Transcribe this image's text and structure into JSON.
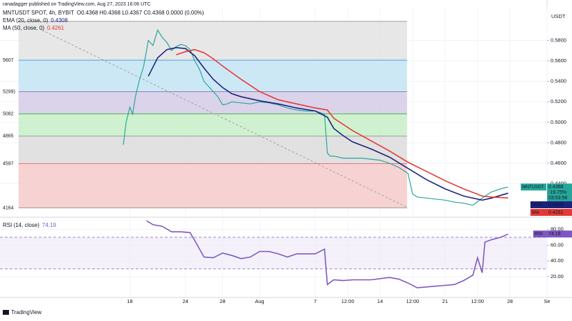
{
  "header": {
    "publisher": "ranadagger published on TradingView.com, Aug 27, 2023 16:06 UTC",
    "logo": "TradingView"
  },
  "chart_data": [
    {
      "type": "line",
      "axis_unit": "USDT",
      "ohlc": "O0.4368 H0.4368 L0.4367 C0.4368 0.0000 (0.00%)",
      "tag_symbol": "MNTUSDT",
      "change": "-19.75%",
      "countdown": "03:53:56",
      "grid": true,
      "xlim": [
        4,
        63
      ],
      "ylim": [
        0.41,
        0.61
      ],
      "yticks": [
        {
          "value": 0.58,
          "label": "0.5800"
        },
        {
          "value": 0.56,
          "label": "0.5600"
        },
        {
          "value": 0.54,
          "label": "0.5400"
        },
        {
          "value": 0.52,
          "label": "0.5200"
        },
        {
          "value": 0.5,
          "label": "0.5000"
        },
        {
          "value": 0.48,
          "label": "0.4800"
        },
        {
          "value": 0.46,
          "label": "0.4600"
        },
        {
          "value": 0.44,
          "label": "0.4400"
        }
      ],
      "fib_x": [
        6,
        47.9
      ],
      "fib_levels": [
        {
          "value": 0.5986,
          "color": "#9e9e9e",
          "fill": "#e3e3e3"
        },
        {
          "value": 0.5607,
          "label": "5607",
          "color": "#4aa3df",
          "fill": "#c4e4f3"
        },
        {
          "value": 0.5299,
          "label": "5299)",
          "color": "#8e7cc3",
          "fill": "#d3cbe6"
        },
        {
          "value": 0.5082,
          "label": "5082",
          "color": "#4caf50",
          "fill": "#c8efc8"
        },
        {
          "value": 0.4865,
          "label": "4865",
          "color": "#9e9e9e",
          "fill": "#dcdcdc"
        },
        {
          "value": 0.4597,
          "label": "4597",
          "color": "#e57373",
          "fill": "#f6caca"
        },
        {
          "value": 0.4164,
          "label": "4164",
          "color": "#9e9e9e"
        }
      ],
      "trendline": {
        "x": [
          8.5,
          47.9
        ],
        "values": [
          0.5901,
          0.417
        ],
        "color": "#9e9e9e"
      },
      "series": [
        {
          "name": "MNTUSDT SPOT, 4h, BYBIT",
          "color": "#26a69a",
          "x": [
            17.3,
            17.6,
            18,
            18.3,
            18.6,
            19,
            19.5,
            20,
            20.5,
            21,
            21.5,
            22,
            22.5,
            23,
            23.5,
            24,
            24.5,
            25,
            25.5,
            26,
            26.5,
            27,
            27.5,
            28,
            28.5,
            29,
            30,
            31,
            32,
            33,
            34,
            35,
            36,
            37,
            38,
            39,
            39.3,
            39.6,
            40,
            41,
            42,
            43,
            44,
            45,
            46,
            47,
            48,
            48.5,
            49,
            50,
            51,
            52,
            53,
            54,
            55,
            56,
            57,
            58,
            58.8
          ],
          "values": [
            0.478,
            0.5,
            0.515,
            0.508,
            0.525,
            0.54,
            0.555,
            0.58,
            0.575,
            0.59,
            0.583,
            0.578,
            0.57,
            0.574,
            0.576,
            0.575,
            0.571,
            0.56,
            0.552,
            0.54,
            0.535,
            0.53,
            0.525,
            0.517,
            0.518,
            0.52,
            0.519,
            0.518,
            0.52,
            0.519,
            0.517,
            0.514,
            0.512,
            0.511,
            0.511,
            0.508,
            0.47,
            0.467,
            0.467,
            0.465,
            0.465,
            0.465,
            0.464,
            0.463,
            0.46,
            0.456,
            0.45,
            0.43,
            0.427,
            0.426,
            0.425,
            0.424,
            0.422,
            0.421,
            0.419,
            0.426,
            0.432,
            0.435,
            0.4368
          ]
        },
        {
          "name": "EMA (20, close, 0)",
          "tag": "EMA",
          "color": "#1a237e",
          "x": [
            20,
            21,
            22,
            23,
            24,
            25,
            26,
            27,
            28,
            29,
            30,
            32,
            34,
            36,
            38,
            39.3,
            40,
            41,
            42,
            44,
            46,
            48,
            50,
            52,
            54,
            56,
            57,
            58.8
          ],
          "values": [
            0.545,
            0.563,
            0.571,
            0.573,
            0.572,
            0.565,
            0.553,
            0.542,
            0.534,
            0.528,
            0.525,
            0.521,
            0.518,
            0.514,
            0.511,
            0.505,
            0.494,
            0.487,
            0.481,
            0.474,
            0.466,
            0.455,
            0.444,
            0.435,
            0.428,
            0.424,
            0.426,
            0.4308
          ]
        },
        {
          "name": "MA (50, close, 0)",
          "tag": "MA",
          "color": "#e53935",
          "x": [
            23,
            24,
            25,
            26,
            27,
            28,
            30,
            32,
            34,
            36,
            38,
            39.3,
            40,
            42,
            44,
            46,
            48,
            50,
            52,
            54,
            56,
            57,
            58.8
          ],
          "values": [
            0.566,
            0.569,
            0.571,
            0.568,
            0.562,
            0.555,
            0.542,
            0.53,
            0.522,
            0.518,
            0.514,
            0.512,
            0.504,
            0.492,
            0.482,
            0.472,
            0.461,
            0.452,
            0.443,
            0.435,
            0.428,
            0.427,
            0.4261
          ]
        }
      ]
    },
    {
      "type": "line",
      "xlim": [
        4,
        63
      ],
      "ylim": [
        -2,
        92
      ],
      "band": [
        30,
        70
      ],
      "grid": true,
      "yticks": [
        {
          "value": 80,
          "label": "80.00"
        },
        {
          "value": 60,
          "label": "60.00"
        },
        {
          "value": 40,
          "label": "40.00"
        },
        {
          "value": 20,
          "label": "20.00"
        }
      ],
      "xticks": [
        18,
        24,
        28,
        {
          "value": 32,
          "label": "Aug"
        },
        {
          "value": 38,
          "label": "7"
        },
        {
          "value": 41.5,
          "label": "12:00"
        },
        {
          "value": 45,
          "label": "14"
        },
        {
          "value": 48.5,
          "label": "12:00"
        },
        {
          "value": 52,
          "label": "21"
        },
        {
          "value": 55.5,
          "label": "12:00"
        },
        {
          "value": 59,
          "label": "28"
        },
        {
          "value": 63,
          "label": "Se"
        }
      ],
      "series": [
        {
          "name": "RSI (14, close)",
          "tag": "RSI",
          "color": "#7e57c2",
          "x": [
            19.8,
            20.5,
            21.5,
            22.5,
            23.5,
            24.5,
            25,
            26,
            27,
            28,
            29,
            30,
            31,
            32,
            33,
            34,
            35,
            36,
            37,
            38,
            39,
            39.3,
            40,
            41,
            42,
            44,
            46,
            47,
            48,
            49,
            50,
            51,
            52,
            53,
            54,
            55,
            55.5,
            56,
            56.3,
            57,
            58,
            58.8
          ],
          "values": [
            91,
            86,
            84,
            77,
            77,
            76,
            66,
            45,
            44,
            50,
            47,
            43,
            45,
            52,
            52,
            49,
            45,
            49,
            49,
            49,
            55,
            10,
            16,
            15,
            16,
            16,
            19,
            17,
            12,
            6,
            7,
            8,
            9,
            10,
            15,
            22,
            44,
            25,
            64,
            67,
            70,
            74.19
          ]
        }
      ]
    }
  ]
}
